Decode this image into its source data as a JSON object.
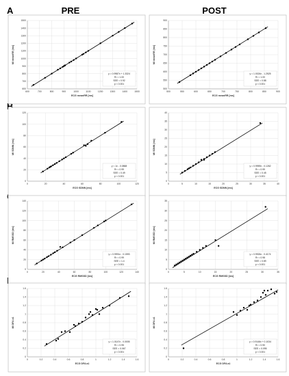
{
  "figure": {
    "columns": [
      "PRE",
      "POST"
    ],
    "rows": [
      "A",
      "B",
      "C",
      "D"
    ]
  },
  "chart_data": [
    {
      "id": "A-pre",
      "type": "scatter",
      "xlabel": "ECG meanRR [ms]",
      "ylabel": "MI meanRR [ms]",
      "xlim": [
        600,
        1500
      ],
      "ylim": [
        600,
        1500
      ],
      "xticks": [
        600,
        700,
        800,
        900,
        1000,
        1100,
        1200,
        1300,
        1400,
        1500
      ],
      "yticks": [
        600,
        700,
        800,
        900,
        1000,
        1100,
        1200,
        1300,
        1400,
        1500
      ],
      "fit": {
        "slope": 0.9987,
        "intercept": 1.3324
      },
      "stats": [
        "y = 0.9987x + 1.3324",
        "R² = 1.00",
        "SEE = 0.92",
        "p < 0.001"
      ],
      "points": [
        [
          650,
          652
        ],
        [
          745,
          746
        ],
        [
          800,
          801
        ],
        [
          850,
          852
        ],
        [
          870,
          870
        ],
        [
          890,
          890
        ],
        [
          900,
          900
        ],
        [
          905,
          906
        ],
        [
          910,
          910
        ],
        [
          945,
          946
        ],
        [
          960,
          960
        ],
        [
          980,
          980
        ],
        [
          1000,
          1000
        ],
        [
          1050,
          1050
        ],
        [
          1060,
          1060
        ],
        [
          1080,
          1080
        ],
        [
          1100,
          1100
        ],
        [
          1200,
          1200
        ],
        [
          1300,
          1300
        ],
        [
          1350,
          1350
        ],
        [
          1400,
          1400
        ],
        [
          1460,
          1460
        ]
      ]
    },
    {
      "id": "A-post",
      "type": "scatter",
      "xlabel": "ECG meanRR [ms]",
      "ylabel": "MI meanRR [ms]",
      "xlim": [
        500,
        900
      ],
      "ylim": [
        500,
        900
      ],
      "xticks": [
        500,
        550,
        600,
        650,
        700,
        750,
        800,
        850,
        900
      ],
      "yticks": [
        500,
        550,
        600,
        650,
        700,
        750,
        800,
        850,
        900
      ],
      "fit": {
        "slope": 1.0024,
        "intercept": -1.2525
      },
      "stats": [
        "y = 1.0024x - 1.2525",
        "R² = 1.00",
        "SEE = 0.88",
        "p < 0.001"
      ],
      "points": [
        [
          540,
          540
        ],
        [
          580,
          580
        ],
        [
          590,
          590
        ],
        [
          600,
          600
        ],
        [
          610,
          610
        ],
        [
          620,
          620
        ],
        [
          630,
          630
        ],
        [
          640,
          640
        ],
        [
          650,
          650
        ],
        [
          660,
          660
        ],
        [
          670,
          670
        ],
        [
          690,
          690
        ],
        [
          710,
          710
        ],
        [
          730,
          730
        ],
        [
          745,
          745
        ],
        [
          760,
          760
        ],
        [
          790,
          790
        ],
        [
          810,
          810
        ],
        [
          830,
          830
        ],
        [
          855,
          855
        ]
      ]
    },
    {
      "id": "B-pre",
      "type": "scatter",
      "xlabel": "ECG SDNN [ms]",
      "ylabel": "MI SDNN [ms]",
      "xlim": [
        0,
        120
      ],
      "ylim": [
        0,
        120
      ],
      "xticks": [
        0,
        20,
        40,
        60,
        80,
        100,
        120
      ],
      "yticks": [
        0,
        20,
        40,
        60,
        80,
        100,
        120
      ],
      "fit": {
        "slope": 1,
        "intercept": -0.0868
      },
      "stats": [
        "y = 1x - 0.0868",
        "R² = 0.99",
        "SEE = 0.49",
        "p < 0.001"
      ],
      "points": [
        [
          17,
          17
        ],
        [
          22,
          22
        ],
        [
          24,
          24
        ],
        [
          25,
          25
        ],
        [
          26,
          26
        ],
        [
          28,
          28
        ],
        [
          30,
          30
        ],
        [
          32,
          32
        ],
        [
          35,
          35
        ],
        [
          38,
          38
        ],
        [
          40,
          40
        ],
        [
          42,
          42
        ],
        [
          48,
          48
        ],
        [
          50,
          50
        ],
        [
          62,
          63
        ],
        [
          64,
          62
        ],
        [
          66,
          65
        ],
        [
          70,
          71
        ],
        [
          85,
          85
        ],
        [
          103,
          104
        ]
      ]
    },
    {
      "id": "B-post",
      "type": "scatter",
      "xlabel": "ECG SDNN [ms]",
      "ylabel": "MI SDNN [ms]",
      "xlim": [
        0,
        40
      ],
      "ylim": [
        0,
        40
      ],
      "xticks": [
        0,
        5,
        10,
        15,
        20,
        25,
        30,
        35,
        40
      ],
      "yticks": [
        0,
        5,
        10,
        15,
        20,
        25,
        30,
        35,
        40
      ],
      "fit": {
        "slope": 0.9959,
        "intercept": -0.1262
      },
      "stats": [
        "y = 0.9959x - 0.1262",
        "R² = 0.99",
        "SEE = 0.45",
        "p < 0.001"
      ],
      "points": [
        [
          5,
          5
        ],
        [
          6,
          6
        ],
        [
          7,
          7
        ],
        [
          7.5,
          7.5
        ],
        [
          8,
          8
        ],
        [
          9,
          9
        ],
        [
          10,
          10
        ],
        [
          11,
          11
        ],
        [
          12,
          12.5
        ],
        [
          13,
          12.5
        ],
        [
          13,
          13
        ],
        [
          14,
          14
        ],
        [
          15,
          15
        ],
        [
          16,
          16
        ],
        [
          17,
          17
        ],
        [
          33.5,
          34
        ]
      ]
    },
    {
      "id": "C-pre",
      "type": "scatter",
      "xlabel": "ECG RMSSD [ms]",
      "ylabel": "MI RMSSD [ms]",
      "xlim": [
        0,
        140
      ],
      "ylim": [
        0,
        140
      ],
      "xticks": [
        0,
        20,
        40,
        60,
        80,
        100,
        120,
        140
      ],
      "yticks": [
        0,
        20,
        40,
        60,
        80,
        100,
        120,
        140
      ],
      "fit": {
        "slope": 0.9991,
        "intercept": -0.1593
      },
      "stats": [
        "y = 0.9991x - 0.1593",
        "R² = 0.99",
        "SEE = 1.4",
        "p < 0.001"
      ],
      "points": [
        [
          12,
          12
        ],
        [
          18,
          18
        ],
        [
          20,
          20
        ],
        [
          22,
          22
        ],
        [
          25,
          25
        ],
        [
          27,
          27
        ],
        [
          30,
          30
        ],
        [
          33,
          33
        ],
        [
          35,
          35
        ],
        [
          38,
          38
        ],
        [
          42,
          46
        ],
        [
          45,
          45
        ],
        [
          55,
          55
        ],
        [
          60,
          60
        ],
        [
          70,
          70
        ],
        [
          85,
          85
        ],
        [
          90,
          90
        ],
        [
          98,
          98
        ],
        [
          100,
          100
        ],
        [
          133,
          133
        ]
      ]
    },
    {
      "id": "C-post",
      "type": "scatter",
      "xlabel": "ECG RMSSD [ms]",
      "ylabel": "MI RMSSD [ms]",
      "xlim": [
        0,
        35
      ],
      "ylim": [
        0,
        35
      ],
      "xticks": [
        0,
        5,
        10,
        15,
        20,
        25,
        30,
        35
      ],
      "yticks": [
        0,
        5,
        10,
        15,
        20,
        25,
        30,
        35
      ],
      "fit": {
        "slope": 0.9926,
        "intercept": -0.4174
      },
      "stats": [
        "y = 0.9926x - 0.4174",
        "R² = 0.98",
        "SEE = 0.89",
        "p < 0.001"
      ],
      "points": [
        [
          2,
          2
        ],
        [
          2.5,
          2.5
        ],
        [
          3,
          3
        ],
        [
          3.5,
          3.5
        ],
        [
          4,
          4
        ],
        [
          4.5,
          4.5
        ],
        [
          5,
          5
        ],
        [
          5.5,
          5.5
        ],
        [
          6,
          6
        ],
        [
          6.5,
          6.5
        ],
        [
          7,
          7
        ],
        [
          7.5,
          7.5
        ],
        [
          8,
          8
        ],
        [
          9,
          9
        ],
        [
          10,
          10
        ],
        [
          11,
          11
        ],
        [
          12,
          12
        ],
        [
          15,
          15
        ],
        [
          16,
          12
        ],
        [
          31,
          32
        ]
      ]
    },
    {
      "id": "D-pre",
      "type": "scatter",
      "xlabel": "ECG DFA a1",
      "ylabel": "MI DFA a1",
      "xlim": [
        0,
        1.6
      ],
      "ylim": [
        0,
        1.6
      ],
      "xticks": [
        0,
        0.2,
        0.4,
        0.6,
        0.8,
        1,
        1.2,
        1.4,
        1.6
      ],
      "yticks": [
        0,
        0.2,
        0.4,
        0.6,
        0.8,
        1,
        1.2,
        1.4,
        1.6
      ],
      "fit": {
        "slope": 1.0147,
        "intercept": -0.0005
      },
      "stats": [
        "y = 1.0147x - 0.0005",
        "R² = 0.95",
        "SEE = 0.067",
        "p < 0.001"
      ],
      "points": [
        [
          0.28,
          0.3
        ],
        [
          0.42,
          0.38
        ],
        [
          0.45,
          0.42
        ],
        [
          0.5,
          0.58
        ],
        [
          0.55,
          0.6
        ],
        [
          0.62,
          0.58
        ],
        [
          0.68,
          0.75
        ],
        [
          0.7,
          0.72
        ],
        [
          0.75,
          0.78
        ],
        [
          0.8,
          0.82
        ],
        [
          0.85,
          0.92
        ],
        [
          0.9,
          1.0
        ],
        [
          0.92,
          1.05
        ],
        [
          0.95,
          0.98
        ],
        [
          1.0,
          1.12
        ],
        [
          1.02,
          1.1
        ],
        [
          1.05,
          1.0
        ],
        [
          1.1,
          1.15
        ],
        [
          1.2,
          1.2
        ],
        [
          1.35,
          1.38
        ],
        [
          1.48,
          1.42
        ]
      ]
    },
    {
      "id": "D-post",
      "type": "scatter",
      "xlabel": "ECG DFA a1",
      "ylabel": "MI DFA a1",
      "xlim": [
        0,
        1.6
      ],
      "ylim": [
        0,
        1.6
      ],
      "xticks": [
        0,
        0.2,
        0.4,
        0.6,
        0.8,
        1,
        1.2,
        1.4,
        1.6
      ],
      "yticks": [
        0,
        0.2,
        0.4,
        0.6,
        0.8,
        1,
        1.2,
        1.4,
        1.6
      ],
      "fit": {
        "slope": 0.9146,
        "intercept": 0.1034
      },
      "stats": [
        "y = 0.9146x + 0.1034",
        "R² = 0.90",
        "SEE = 0.095",
        "p < 0.001"
      ],
      "points": [
        [
          0.22,
          0.2
        ],
        [
          0.95,
          1.05
        ],
        [
          1.0,
          0.98
        ],
        [
          1.05,
          1.08
        ],
        [
          1.1,
          1.15
        ],
        [
          1.15,
          1.1
        ],
        [
          1.18,
          1.2
        ],
        [
          1.2,
          1.22
        ],
        [
          1.25,
          1.28
        ],
        [
          1.3,
          1.32
        ],
        [
          1.35,
          1.4
        ],
        [
          1.38,
          1.5
        ],
        [
          1.4,
          1.55
        ],
        [
          1.42,
          1.45
        ],
        [
          1.45,
          1.55
        ],
        [
          1.5,
          1.58
        ],
        [
          1.55,
          1.48
        ],
        [
          1.58,
          1.52
        ]
      ]
    }
  ]
}
